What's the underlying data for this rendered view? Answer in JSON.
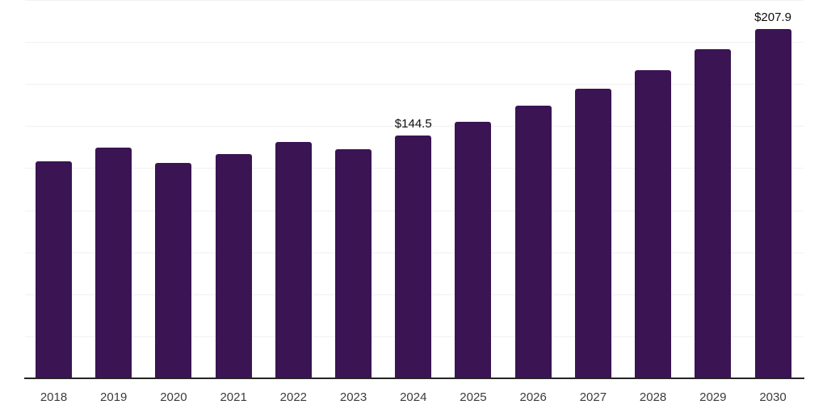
{
  "chart_data": {
    "type": "bar",
    "title": "",
    "xlabel": "",
    "ylabel": "",
    "categories": [
      "2018",
      "2019",
      "2020",
      "2021",
      "2022",
      "2023",
      "2024",
      "2025",
      "2026",
      "2027",
      "2028",
      "2029",
      "2030"
    ],
    "values": [
      129.1,
      137.1,
      128.0,
      133.4,
      140.7,
      136.3,
      144.5,
      152.7,
      162.2,
      172.1,
      183.4,
      195.5,
      207.9
    ],
    "unit_prefix": "$",
    "annotations": [
      {
        "category": "2024",
        "text": "$144.5"
      },
      {
        "category": "2030",
        "text": "$207.9"
      }
    ],
    "ylim": [
      0,
      225
    ],
    "gridline_step": 25,
    "grid": true,
    "legend": "none",
    "y_tick_labels_visible": false,
    "colors": {
      "bar": "#3A1453",
      "axis_line": "#262626",
      "gridline": "#F1F1F1",
      "tick_label": "#3C3C3C",
      "data_label": "#0D0D0D",
      "background": "#FFFFFF"
    }
  }
}
